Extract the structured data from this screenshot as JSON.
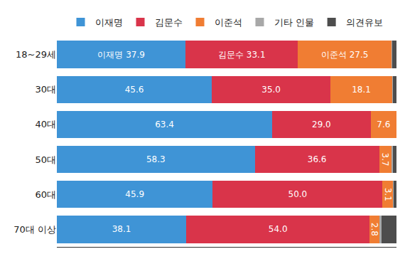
{
  "chart_data": {
    "type": "bar",
    "orientation": "horizontal",
    "stacked": true,
    "data_labels": true,
    "tick_labels": "y",
    "grid": false,
    "legend": "top",
    "xlim": [
      0,
      100
    ],
    "categories": [
      "18~29세",
      "30대",
      "40대",
      "50대",
      "60대",
      "70대 이상"
    ],
    "series": [
      {
        "name": "이재명",
        "color": "#3f94d6",
        "values": [
          37.9,
          45.6,
          63.4,
          58.3,
          45.9,
          38.1
        ],
        "value_labels": [
          "이재명 37.9",
          "45.6",
          "63.4",
          "58.3",
          "45.9",
          "38.1"
        ]
      },
      {
        "name": "김문수",
        "color": "#d9344a",
        "values": [
          33.1,
          35.0,
          29.0,
          36.6,
          50.0,
          54.0
        ],
        "value_labels": [
          "김문수 33.1",
          "35.0",
          "29.0",
          "36.6",
          "50.0",
          "54.0"
        ]
      },
      {
        "name": "이준석",
        "color": "#f07d33",
        "values": [
          27.5,
          18.1,
          7.6,
          3.7,
          3.1,
          2.8
        ],
        "value_labels": [
          "이준석 27.5",
          "18.1",
          "7.6",
          "3.7",
          "3.1",
          "2.8"
        ]
      },
      {
        "name": "기타 인물",
        "color": "#a8a8a8",
        "values": [
          0.3,
          0.3,
          0,
          0.3,
          0.2,
          0.8
        ]
      },
      {
        "name": "의견유보",
        "color": "#4d4d4d",
        "values": [
          1.2,
          1.0,
          0,
          1.1,
          0.8,
          4.3
        ]
      }
    ]
  }
}
